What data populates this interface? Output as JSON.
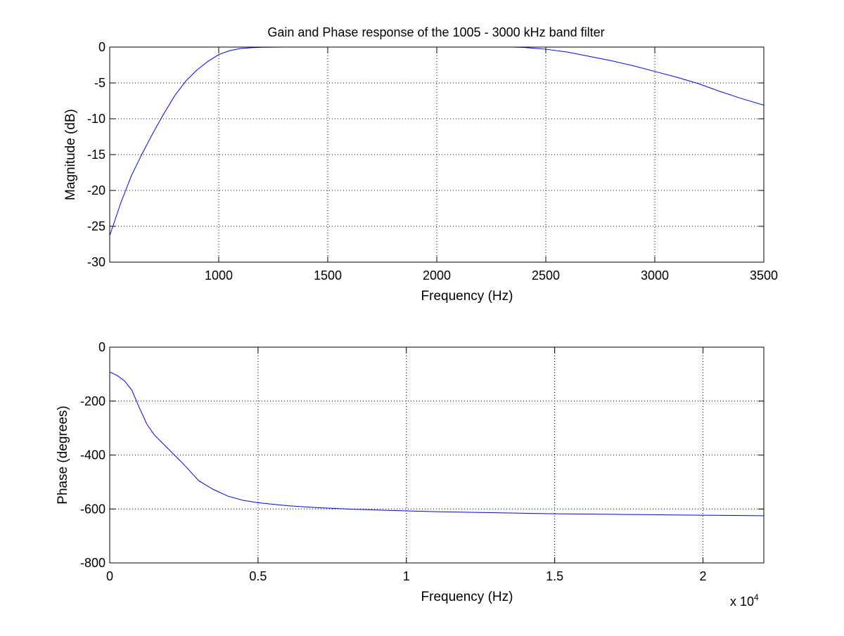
{
  "chart_data": [
    {
      "type": "line",
      "title": "Gain and Phase response of the 1005 - 3000 kHz band   filter",
      "xlabel": "Frequency (Hz)",
      "ylabel": "Magnitude (dB)",
      "xlim": [
        500,
        3500
      ],
      "ylim": [
        -30,
        0
      ],
      "xticks": [
        1000,
        1500,
        2000,
        2500,
        3000,
        3500
      ],
      "yticks": [
        0,
        -5,
        -10,
        -15,
        -20,
        -25,
        -30
      ],
      "xtick_labels": [
        "1000",
        "1500",
        "2000",
        "2500",
        "3000",
        "3500"
      ],
      "ytick_labels": [
        "0",
        "-5",
        "-10",
        "-15",
        "-20",
        "-25",
        "-30"
      ],
      "grid": true,
      "line_color": "#0000ff",
      "series": [
        {
          "segments": [
            {
              "x": [
                500,
                550,
                600,
                650,
                700,
                750,
                800,
                850,
                900,
                950,
                1000,
                1050,
                1100,
                1150,
                1200,
                1250,
                1300
              ],
              "y": [
                -26.3,
                -21.8,
                -17.9,
                -14.8,
                -11.9,
                -9.2,
                -6.7,
                -4.7,
                -3.2,
                -2.0,
                -1.05,
                -0.5,
                -0.2,
                -0.08,
                -0.03,
                -0.01,
                0
              ]
            },
            {
              "x": [
                2350,
                2400,
                2500,
                2600,
                2700,
                2800,
                2900,
                3000,
                3100,
                3200,
                3300,
                3400,
                3500
              ],
              "y": [
                0,
                -0.05,
                -0.3,
                -0.7,
                -1.3,
                -1.9,
                -2.6,
                -3.4,
                -4.2,
                -5.1,
                -6.2,
                -7.2,
                -8.1
              ]
            }
          ]
        }
      ]
    },
    {
      "type": "line",
      "xlabel": "Frequency (Hz)",
      "ylabel": "Phase (degrees)",
      "xlim": [
        0,
        22050
      ],
      "ylim": [
        -800,
        0
      ],
      "xticks": [
        0,
        5000,
        10000,
        15000,
        20000
      ],
      "yticks": [
        0,
        -200,
        -400,
        -600,
        -800
      ],
      "xtick_labels": [
        "0",
        "0.5",
        "1",
        "1.5",
        "2"
      ],
      "ytick_labels": [
        "0",
        "-200",
        "-400",
        "-600",
        "-800"
      ],
      "x_multiplier_label": "x 10",
      "x_multiplier_exponent": "4",
      "grid": true,
      "line_color": "#0000ff",
      "series": [
        {
          "segments": [
            {
              "x": [
                0,
                250,
                500,
                750,
                1000,
                1250,
                1500,
                2000,
                2500,
                3000,
                3250,
                3500,
                4000,
                4500,
                5000,
                6000,
                7000,
                8000,
                9000,
                10000,
                11000,
                12000,
                13000,
                14000,
                15000,
                16000,
                17000,
                18000,
                19000,
                20000,
                21000,
                22050
              ],
              "y": [
                -92,
                -105,
                -125,
                -160,
                -225,
                -285,
                -325,
                -380,
                -435,
                -495,
                -512,
                -528,
                -553,
                -568,
                -577,
                -588,
                -595,
                -600,
                -604,
                -607,
                -610,
                -612,
                -614,
                -616,
                -618,
                -619,
                -620,
                -621,
                -622,
                -623,
                -624,
                -625
              ]
            }
          ]
        }
      ]
    }
  ]
}
